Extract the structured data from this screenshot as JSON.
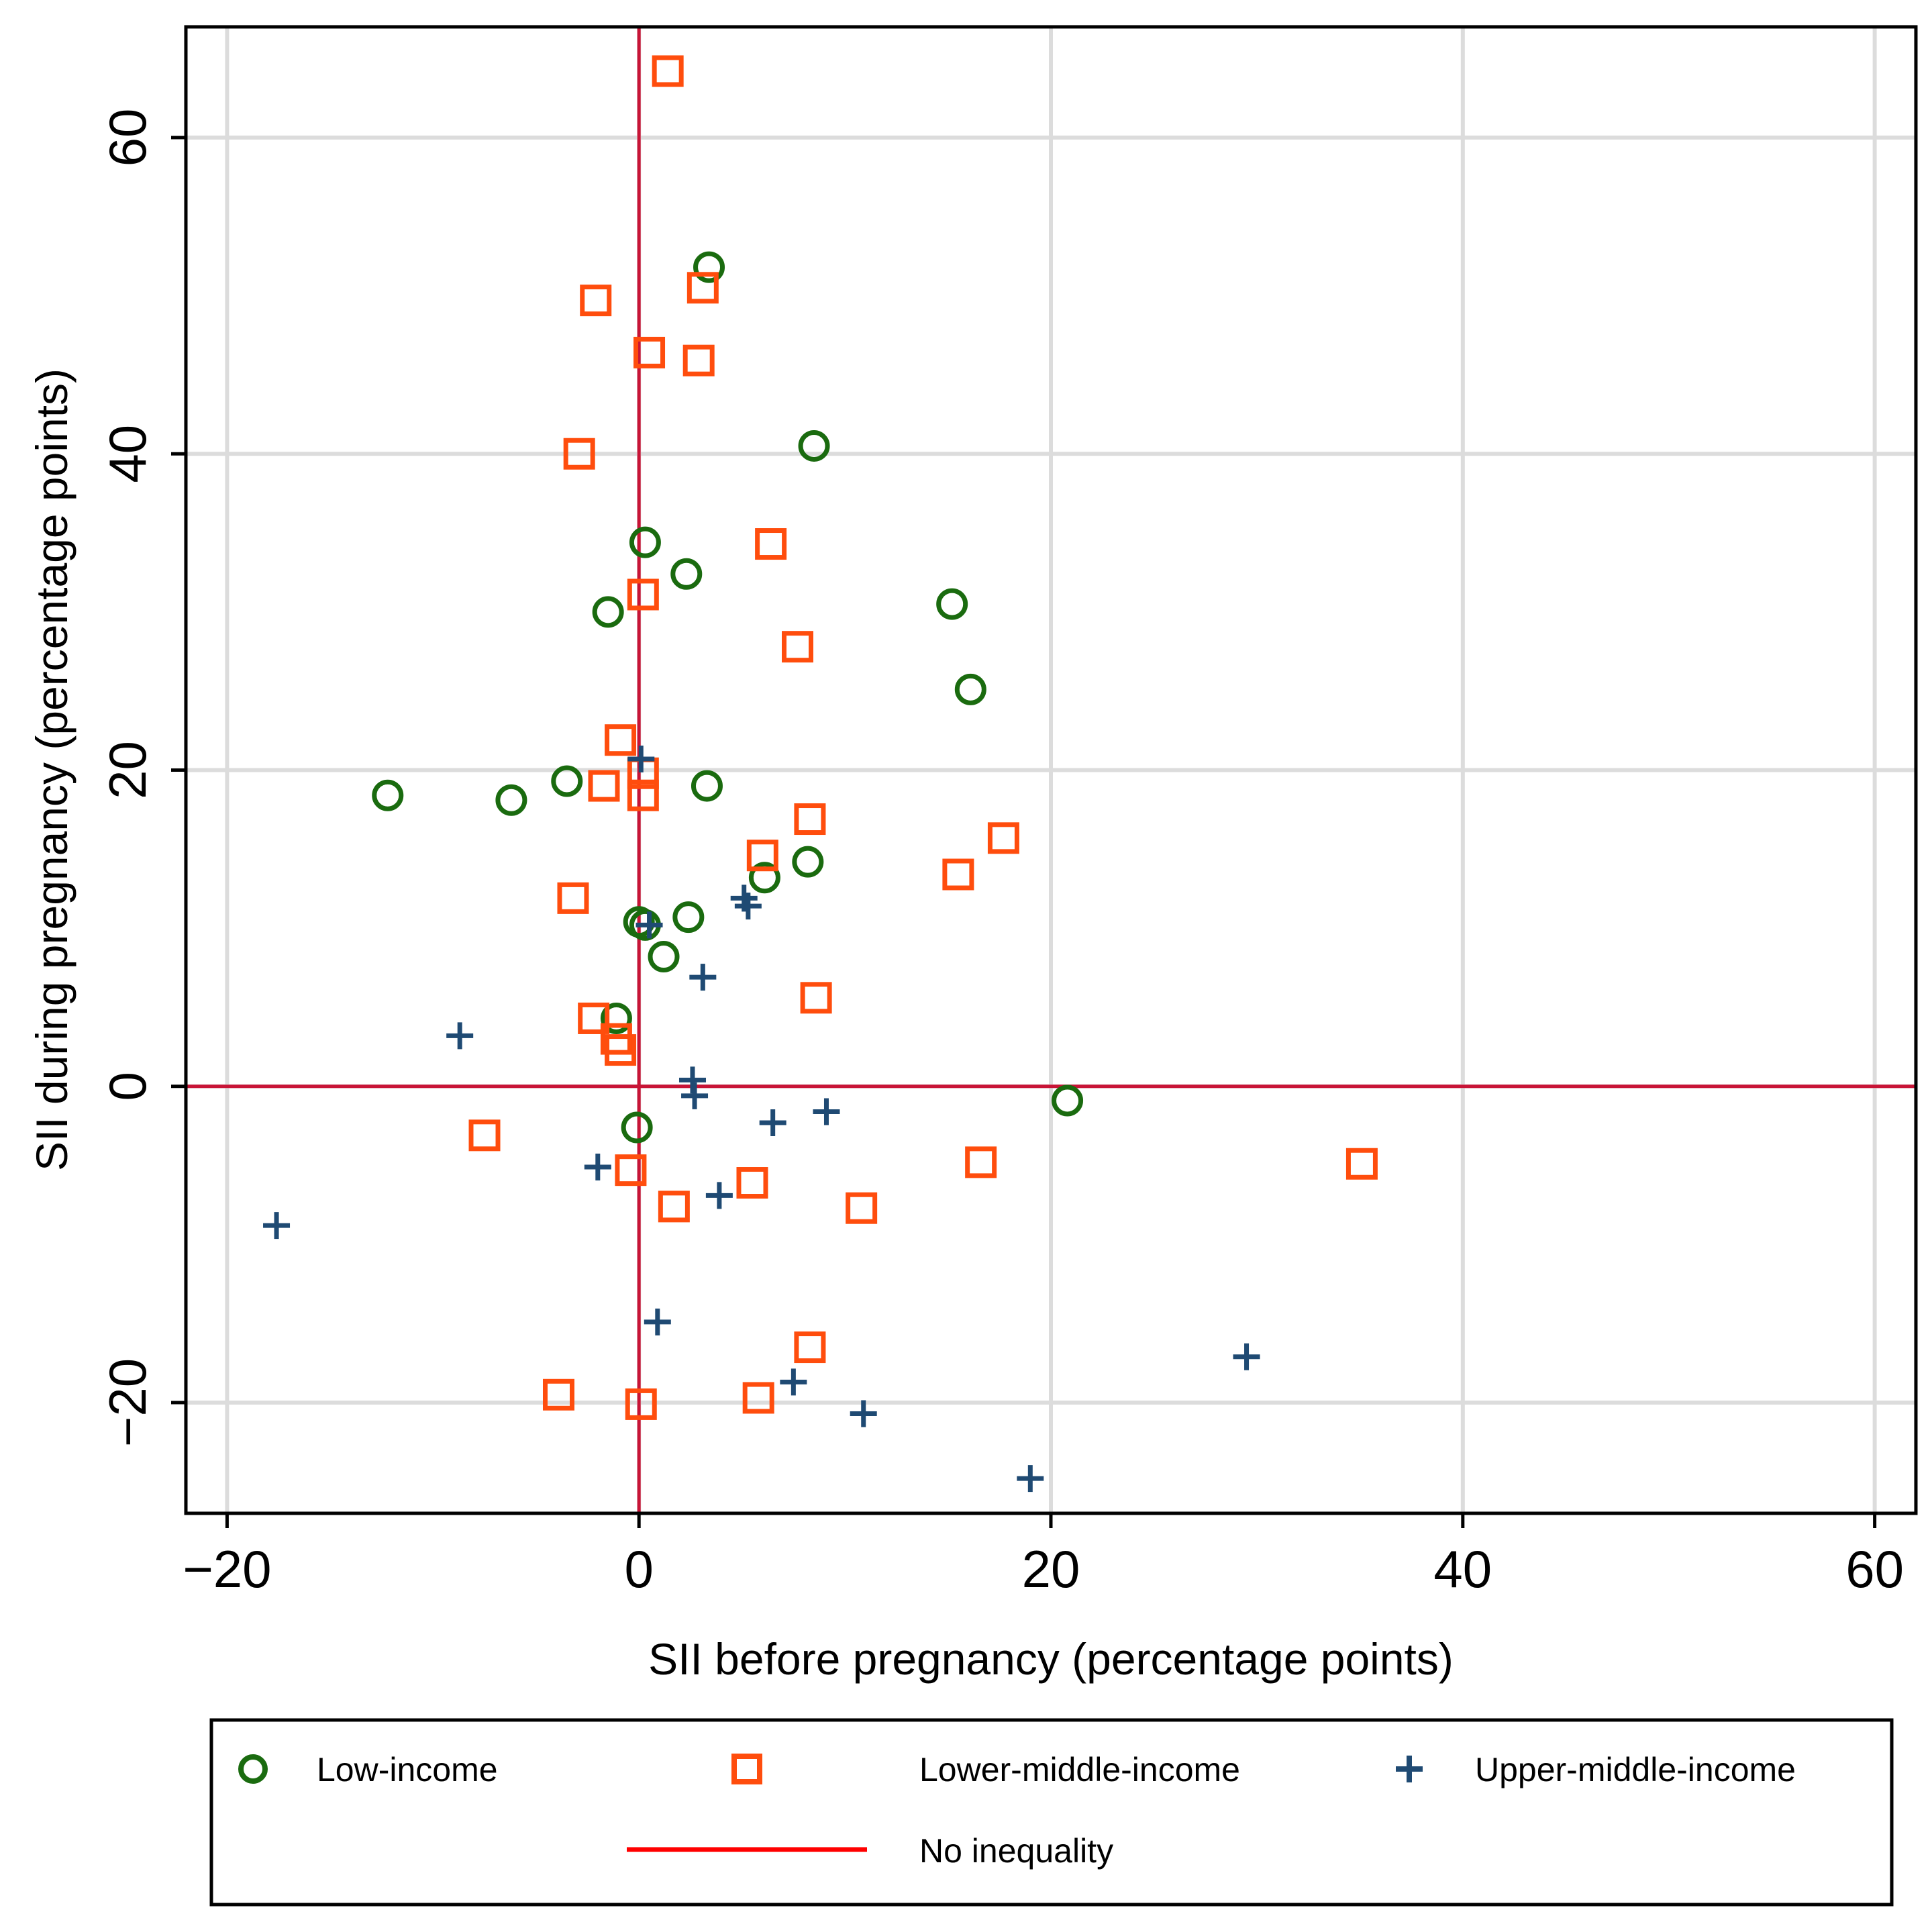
{
  "chart_data": {
    "type": "scatter",
    "title": "",
    "xlabel": "SII before pregnancy (percentage points)",
    "ylabel": "SII during pregnancy (percentage points)",
    "xlim": [
      -22,
      62
    ],
    "ylim": [
      -27,
      67
    ],
    "xticks": [
      -20,
      0,
      20,
      40,
      60
    ],
    "yticks": [
      -20,
      0,
      20,
      40,
      60
    ],
    "xtick_labels": [
      "−20",
      "0",
      "20",
      "40",
      "60"
    ],
    "ytick_labels": [
      "−20",
      "0",
      "20",
      "40",
      "60"
    ],
    "grid": true,
    "legend_position": "bottom",
    "colors": {
      "low": "#1a6b0f",
      "lower_middle": "#ff4d0d",
      "upper_middle": "#1f4a73",
      "no_inequality": "#c81436",
      "legend_line": "#ff0000",
      "grid": "#dcdcdc"
    },
    "series": [
      {
        "name": "Low-income",
        "marker": "circle",
        "points": [
          [
            3.4,
            51.8
          ],
          [
            8.5,
            40.5
          ],
          [
            0.3,
            34.4
          ],
          [
            2.3,
            32.4
          ],
          [
            -1.5,
            30.0
          ],
          [
            15.2,
            30.5
          ],
          [
            16.1,
            25.1
          ],
          [
            -12.2,
            18.4
          ],
          [
            -6.2,
            18.1
          ],
          [
            -3.5,
            19.3
          ],
          [
            3.3,
            19.0
          ],
          [
            8.2,
            14.2
          ],
          [
            6.1,
            13.2
          ],
          [
            2.4,
            10.7
          ],
          [
            0.0,
            10.4
          ],
          [
            0.3,
            10.2
          ],
          [
            1.2,
            8.2
          ],
          [
            -1.1,
            4.3
          ],
          [
            -0.1,
            -2.6
          ],
          [
            20.8,
            -0.9
          ]
        ]
      },
      {
        "name": "Lower-middle-income",
        "marker": "square",
        "points": [
          [
            1.4,
            64.2
          ],
          [
            3.1,
            50.5
          ],
          [
            -2.1,
            49.7
          ],
          [
            0.5,
            46.4
          ],
          [
            2.9,
            45.9
          ],
          [
            -2.9,
            40.0
          ],
          [
            6.4,
            34.3
          ],
          [
            0.2,
            31.1
          ],
          [
            7.7,
            27.8
          ],
          [
            -0.9,
            21.9
          ],
          [
            -1.7,
            19.0
          ],
          [
            0.2,
            19.8
          ],
          [
            0.2,
            18.4
          ],
          [
            8.3,
            16.9
          ],
          [
            17.7,
            15.7
          ],
          [
            6.0,
            14.6
          ],
          [
            15.5,
            13.4
          ],
          [
            -3.2,
            11.9
          ],
          [
            8.6,
            5.6
          ],
          [
            -2.2,
            4.3
          ],
          [
            -1.1,
            3.0
          ],
          [
            -0.9,
            2.3
          ],
          [
            -7.5,
            -3.1
          ],
          [
            -0.4,
            -5.3
          ],
          [
            1.7,
            -7.6
          ],
          [
            5.5,
            -6.1
          ],
          [
            10.8,
            -7.7
          ],
          [
            16.6,
            -4.8
          ],
          [
            35.1,
            -4.9
          ],
          [
            8.3,
            -16.5
          ],
          [
            -3.9,
            -19.5
          ],
          [
            0.1,
            -20.1
          ],
          [
            5.8,
            -19.7
          ]
        ]
      },
      {
        "name": "Upper-middle-income",
        "marker": "plus",
        "points": [
          [
            0.1,
            20.7
          ],
          [
            5.1,
            11.9
          ],
          [
            5.3,
            11.4
          ],
          [
            0.5,
            10.2
          ],
          [
            3.1,
            6.9
          ],
          [
            -8.7,
            3.2
          ],
          [
            2.6,
            0.4
          ],
          [
            2.7,
            -0.6
          ],
          [
            6.5,
            -2.3
          ],
          [
            9.1,
            -1.6
          ],
          [
            -2.0,
            -5.1
          ],
          [
            3.9,
            -6.9
          ],
          [
            -17.6,
            -8.8
          ],
          [
            0.9,
            -14.9
          ],
          [
            7.5,
            -18.7
          ],
          [
            10.9,
            -20.7
          ],
          [
            29.5,
            -17.1
          ],
          [
            19.0,
            -24.8
          ]
        ]
      }
    ],
    "reference_lines": [
      {
        "name": "No inequality",
        "orientation": "vertical",
        "value": 0
      },
      {
        "name": "No inequality",
        "orientation": "horizontal",
        "value": 0
      }
    ],
    "legend": [
      {
        "label": "Low-income",
        "marker": "circle"
      },
      {
        "label": "Lower-middle-income",
        "marker": "square"
      },
      {
        "label": "Upper-middle-income",
        "marker": "plus"
      },
      {
        "label": "No inequality",
        "marker": "line"
      }
    ]
  }
}
